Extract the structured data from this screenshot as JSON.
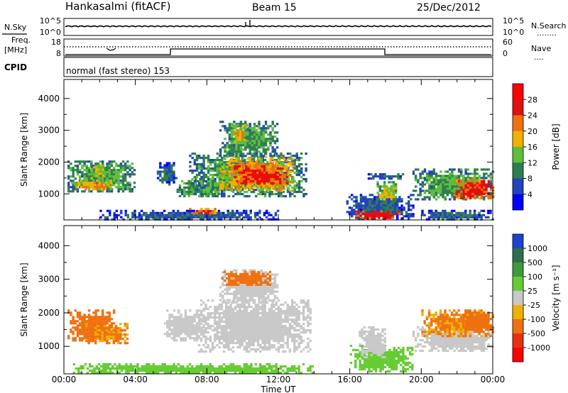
{
  "header": {
    "station": "Hankasalmi (fitACF)",
    "beam": "Beam 15",
    "date": "25/Dec/2012"
  },
  "top_panels": {
    "nsky_label": "N.Sky",
    "nsearch_label": "N.Search",
    "nsearch_legend": "........",
    "noise_ticks": [
      "10^5",
      "10^0"
    ],
    "freq_label_1": "Freq.",
    "freq_label_2": "[MHz]",
    "freq_ticks": [
      "18",
      "8"
    ],
    "nave_label": "Nave",
    "nave_legend": "....",
    "nave_ticks": [
      "60",
      "0"
    ],
    "cpid_label": "CPID",
    "cpid_text": "normal (fast stereo) 153"
  },
  "chart_data": [
    {
      "type": "heatmap",
      "title": "",
      "xlabel": "Time UT",
      "ylabel": "Slant Range [km]",
      "xlim": [
        "00:00",
        "24:00"
      ],
      "ylim": [
        180,
        4600
      ],
      "xticks": [
        "00:00",
        "04:00",
        "08:00",
        "12:00",
        "16:00",
        "20:00",
        "00:00"
      ],
      "yticks": [
        1000,
        2000,
        3000,
        4000
      ],
      "colorbar": {
        "label": "Power [dB]",
        "ticks": [
          4,
          8,
          12,
          16,
          20,
          24,
          28
        ],
        "colors": [
          "#0000ff",
          "#2244bb",
          "#2e7d4f",
          "#5cbf3a",
          "#f0b000",
          "#f07010",
          "#e01010",
          "#ff0000"
        ]
      },
      "regions": [
        {
          "t0": 0.2,
          "t1": 4.0,
          "r0": 1050,
          "r1": 2050,
          "level": 12
        },
        {
          "t0": 0.4,
          "t1": 2.6,
          "r0": 1150,
          "r1": 1450,
          "level": 20
        },
        {
          "t0": 1.5,
          "t1": 2.3,
          "r0": 1500,
          "r1": 2000,
          "level": 16
        },
        {
          "t0": 5.2,
          "t1": 6.3,
          "r0": 1300,
          "r1": 2000,
          "level": 8
        },
        {
          "t0": 6.3,
          "t1": 9.0,
          "r0": 900,
          "r1": 1500,
          "level": 12
        },
        {
          "t0": 7.0,
          "t1": 13.5,
          "r0": 900,
          "r1": 2300,
          "level": 12
        },
        {
          "t0": 8.7,
          "t1": 12.8,
          "r0": 1100,
          "r1": 2200,
          "level": 20
        },
        {
          "t0": 9.5,
          "t1": 12.5,
          "r0": 1300,
          "r1": 1900,
          "level": 26
        },
        {
          "t0": 8.7,
          "t1": 12.0,
          "r0": 2200,
          "r1": 3300,
          "level": 12
        },
        {
          "t0": 9.3,
          "t1": 10.2,
          "r0": 2600,
          "r1": 3200,
          "level": 18
        },
        {
          "t0": 2.0,
          "t1": 12.0,
          "r0": 200,
          "r1": 500,
          "level": 8
        },
        {
          "t0": 7.0,
          "t1": 8.5,
          "r0": 380,
          "r1": 560,
          "level": 24
        },
        {
          "t0": 15.8,
          "t1": 19.5,
          "r0": 230,
          "r1": 1000,
          "level": 8
        },
        {
          "t0": 16.3,
          "t1": 18.8,
          "r0": 230,
          "r1": 480,
          "level": 28
        },
        {
          "t0": 17.5,
          "t1": 18.6,
          "r0": 800,
          "r1": 1400,
          "level": 16
        },
        {
          "t0": 17.0,
          "t1": 19.0,
          "r0": 1500,
          "r1": 1650,
          "level": 8
        },
        {
          "t0": 19.5,
          "t1": 24.0,
          "r0": 800,
          "r1": 1800,
          "level": 12
        },
        {
          "t0": 21.8,
          "t1": 24.0,
          "r0": 850,
          "r1": 1500,
          "level": 26
        },
        {
          "t0": 20.0,
          "t1": 24.0,
          "r0": 200,
          "r1": 500,
          "level": 8
        }
      ]
    },
    {
      "type": "heatmap",
      "title": "",
      "xlabel": "Time UT",
      "ylabel": "Slant Range [km]",
      "xlim": [
        "00:00",
        "24:00"
      ],
      "ylim": [
        180,
        4600
      ],
      "xticks": [
        "00:00",
        "04:00",
        "08:00",
        "12:00",
        "16:00",
        "20:00",
        "00:00"
      ],
      "yticks": [
        1000,
        2000,
        3000,
        4000
      ],
      "colorbar": {
        "label": "Velocity [m s⁻¹]",
        "ticks": [
          1000,
          500,
          100,
          25,
          -25,
          -100,
          -500,
          -1000
        ],
        "colors": [
          "#2040d0",
          "#2e6e4a",
          "#3d9a3d",
          "#66cc33",
          "#c8c8c8",
          "#f0b000",
          "#f07010",
          "#e83010",
          "#ff0000"
        ]
      },
      "regions": [
        {
          "t0": 0.2,
          "t1": 2.8,
          "r0": 1150,
          "r1": 2100,
          "level": -300
        },
        {
          "t0": 1.2,
          "t1": 3.6,
          "r0": 1100,
          "r1": 1700,
          "level": -120
        },
        {
          "t0": 5.6,
          "t1": 7.8,
          "r0": 1200,
          "r1": 2100,
          "level": 0
        },
        {
          "t0": 7.5,
          "t1": 13.8,
          "r0": 850,
          "r1": 2400,
          "level": 0
        },
        {
          "t0": 8.7,
          "t1": 12.0,
          "r0": 2300,
          "r1": 3300,
          "level": 0
        },
        {
          "t0": 8.8,
          "t1": 11.5,
          "r0": 2850,
          "r1": 3250,
          "level": -300
        },
        {
          "t0": 0.5,
          "t1": 14.0,
          "r0": 200,
          "r1": 500,
          "level": 60
        },
        {
          "t0": 16.0,
          "t1": 19.5,
          "r0": 250,
          "r1": 1050,
          "level": 60
        },
        {
          "t0": 16.5,
          "t1": 18.0,
          "r0": 700,
          "r1": 1600,
          "level": 0
        },
        {
          "t0": 19.5,
          "t1": 24.0,
          "r0": 850,
          "r1": 1600,
          "level": 0
        },
        {
          "t0": 20.0,
          "t1": 24.0,
          "r0": 1300,
          "r1": 2100,
          "level": -120
        },
        {
          "t0": 22.3,
          "t1": 23.9,
          "r0": 1500,
          "r1": 2100,
          "level": -300
        }
      ]
    }
  ]
}
